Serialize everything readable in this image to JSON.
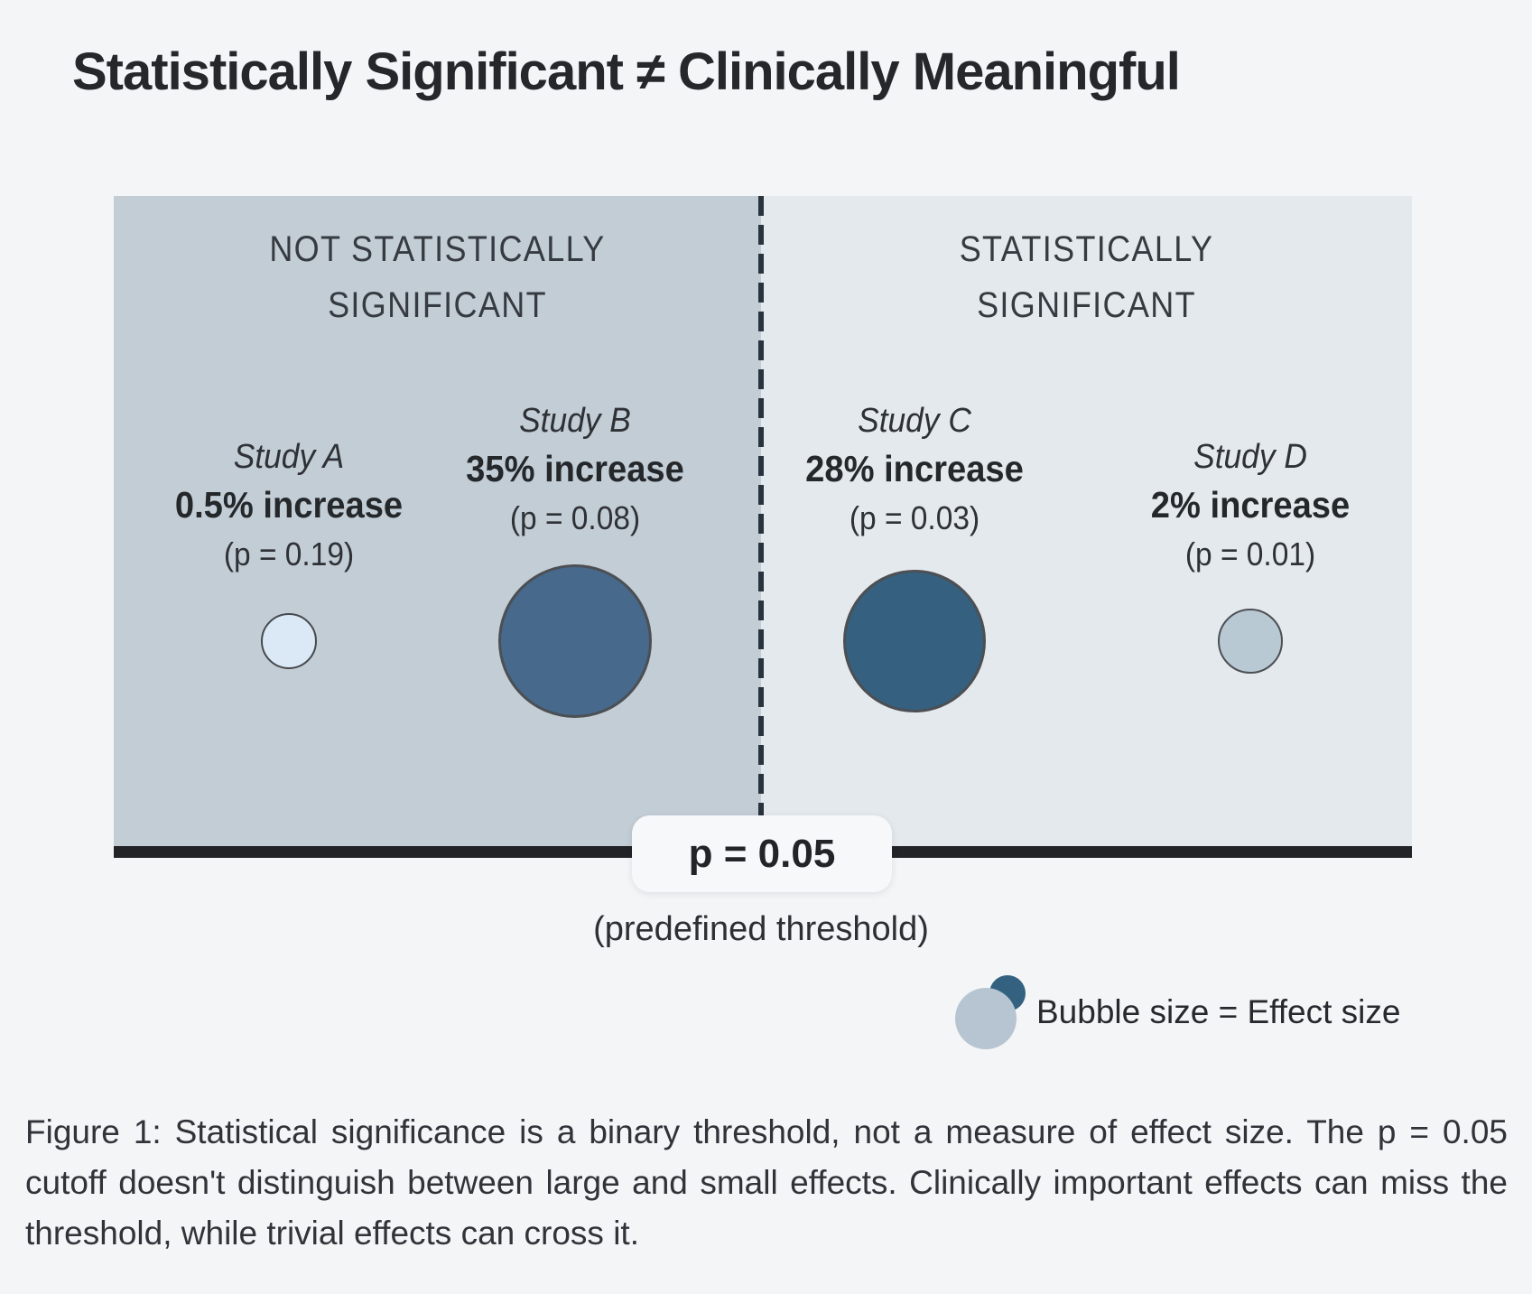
{
  "title": "Statistically Significant ≠ Clinically Meaningful",
  "panels": {
    "left": {
      "line1": "NOT STATISTICALLY",
      "line2": "SIGNIFICANT"
    },
    "right": {
      "line1": "STATISTICALLY",
      "line2": "SIGNIFICANT"
    }
  },
  "studies": [
    {
      "name": "Study A",
      "effect": "0.5% increase",
      "p": "(p = 0.19)",
      "bubble_color": "#dbe9f6"
    },
    {
      "name": "Study B",
      "effect": "35% increase",
      "p": "(p = 0.08)",
      "bubble_color": "#46698c"
    },
    {
      "name": "Study C",
      "effect": "28% increase",
      "p": "(p = 0.03)",
      "bubble_color": "#35607f"
    },
    {
      "name": "Study D",
      "effect": "2% increase",
      "p": "(p = 0.01)",
      "bubble_color": "#b9c9d4"
    }
  ],
  "threshold": {
    "label": "p = 0.05",
    "sublabel": "(predefined threshold)"
  },
  "legend": {
    "label": "Bubble size = Effect size"
  },
  "caption": "Figure 1: Statistical significance is a binary threshold, not a measure of effect size. The p = 0.05 cutoff doesn't distinguish between large and small effects. Clinically important effects can miss the threshold, while trivial effects can cross it.",
  "colors": {
    "page_background": "#f4f5f7",
    "panel_not_significant": "#c3cdd6",
    "panel_significant": "#e4e9ed",
    "divider_dashed": "#28333e",
    "axis_line": "#212326",
    "label_box": "#f7f8fa",
    "legend_dark_bubble": "#33617f",
    "legend_light_bubble": "#b6c5d1"
  },
  "chart_data": {
    "type": "scatter",
    "title": "Statistically Significant ≠ Clinically Meaningful",
    "encoding": "bubble size = effect size; horizontal region = p-value vs threshold",
    "regions": [
      "NOT STATISTICALLY SIGNIFICANT",
      "STATISTICALLY SIGNIFICANT"
    ],
    "threshold": {
      "p_value": 0.05,
      "label": "p = 0.05 (predefined threshold)"
    },
    "series": [
      {
        "name": "Study A",
        "effect_size_pct": 0.5,
        "p_value": 0.19,
        "statistically_significant": false
      },
      {
        "name": "Study B",
        "effect_size_pct": 35,
        "p_value": 0.08,
        "statistically_significant": false
      },
      {
        "name": "Study C",
        "effect_size_pct": 28,
        "p_value": 0.03,
        "statistically_significant": true
      },
      {
        "name": "Study D",
        "effect_size_pct": 2,
        "p_value": 0.01,
        "statistically_significant": true
      }
    ],
    "legend_position": "bottom-right",
    "grid": false
  }
}
